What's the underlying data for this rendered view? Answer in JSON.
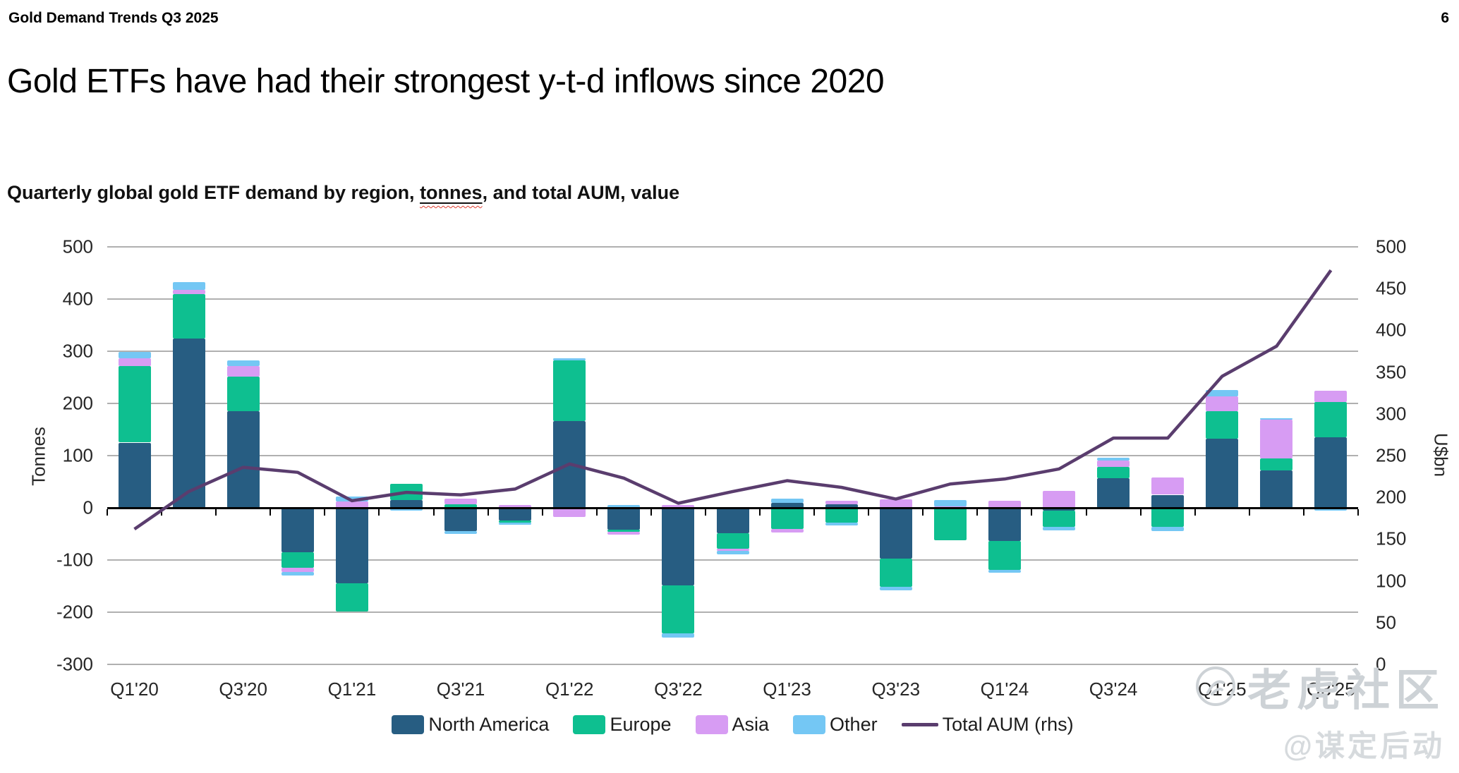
{
  "page": {
    "header": "Gold Demand Trends Q3 2025",
    "page_number": "6",
    "title": "Gold ETFs have had their strongest y-t-d inflows since 2020",
    "subtitle_prefix": "Quarterly global gold ETF demand by region, ",
    "subtitle_underlined": "tonnes",
    "subtitle_suffix": ", and total AUM, value"
  },
  "watermark": {
    "community": "老虎社区",
    "handle": "@谋定后动"
  },
  "chart_data": {
    "type": "bar",
    "subtype": "stacked-bars-with-line",
    "title": "Quarterly global gold ETF demand by region, tonnes, and total AUM, value",
    "categories": [
      "Q1'20",
      "Q2'20",
      "Q3'20",
      "Q4'20",
      "Q1'21",
      "Q2'21",
      "Q3'21",
      "Q4'21",
      "Q1'22",
      "Q2'22",
      "Q3'22",
      "Q4'22",
      "Q1'23",
      "Q2'23",
      "Q3'23",
      "Q4'23",
      "Q1'24",
      "Q2'24",
      "Q3'24",
      "Q4'24",
      "Q1'25",
      "Q2'25",
      "Q3'25"
    ],
    "x_tick_labels": [
      "Q1'20",
      "Q3'20",
      "Q1'21",
      "Q3'21",
      "Q1'22",
      "Q3'22",
      "Q1'23",
      "Q3'23",
      "Q1'24",
      "Q3'24",
      "Q1'25",
      "Q3'25"
    ],
    "series": [
      {
        "name": "North America",
        "color": "#275D82",
        "values": [
          125,
          324,
          185,
          -85,
          -145,
          15,
          -44,
          -24,
          166,
          -42,
          -148,
          -49,
          9,
          7,
          -97,
          0,
          -64,
          -6,
          57,
          25,
          132,
          72,
          135
        ]
      },
      {
        "name": "Europe",
        "color": "#0EBF90",
        "values": [
          147,
          85,
          67,
          -30,
          -54,
          31,
          7,
          -4,
          117,
          -4,
          -92,
          -29,
          -40,
          -28,
          -54,
          -62,
          -55,
          -30,
          21,
          -37,
          53,
          22,
          68
        ]
      },
      {
        "name": "Asia",
        "color": "#D79CF3",
        "values": [
          14,
          9,
          20,
          -8,
          12,
          0,
          10,
          6,
          -18,
          -6,
          5,
          -5,
          -7,
          7,
          16,
          3,
          14,
          32,
          13,
          33,
          29,
          75,
          22
        ]
      },
      {
        "name": "Other",
        "color": "#74C7F4",
        "values": [
          12,
          14,
          11,
          -7,
          9,
          -6,
          -6,
          -5,
          4,
          5,
          -8,
          -6,
          8,
          -6,
          -7,
          12,
          -6,
          -7,
          5,
          -7,
          12,
          3,
          -5
        ]
      }
    ],
    "line_series": {
      "name": "Total AUM (rhs)",
      "color": "#5A3D6E",
      "values": [
        162,
        207,
        236,
        230,
        196,
        206,
        203,
        210,
        240,
        223,
        193,
        207,
        220,
        212,
        198,
        216,
        222,
        234,
        271,
        271,
        345,
        381,
        472
      ]
    },
    "left_axis": {
      "label": "Tonnes",
      "min": -300,
      "max": 500,
      "tick_step": 100,
      "tick_labels": [
        "500",
        "400",
        "300",
        "200",
        "100",
        "0",
        "-100",
        "-200",
        "-300"
      ]
    },
    "right_axis": {
      "label": "U$bn",
      "min": 0,
      "max": 500,
      "tick_step": 50,
      "tick_labels": [
        "500",
        "450",
        "400",
        "350",
        "300",
        "250",
        "200",
        "150",
        "100",
        "50",
        "0"
      ]
    },
    "legend_position": "bottom",
    "grid": true,
    "grid_color": "#b0b0b0"
  }
}
